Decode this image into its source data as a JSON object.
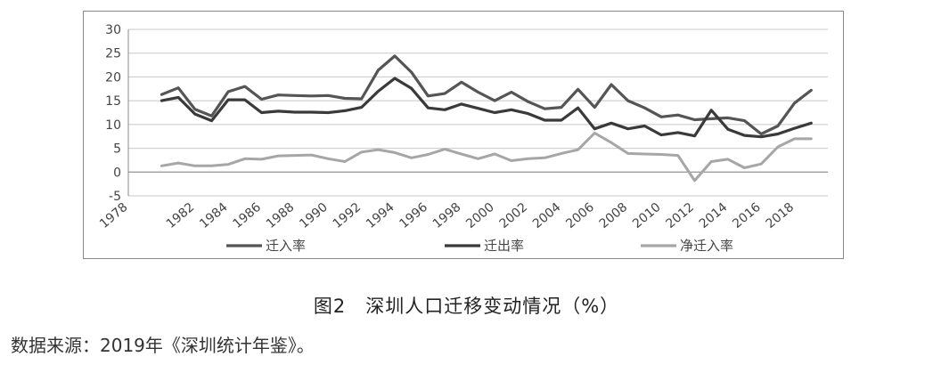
{
  "chart_data": {
    "type": "line",
    "title": "",
    "xlabel": "",
    "ylabel": "",
    "ylim": [
      -5,
      30
    ],
    "yticks": [
      -5,
      0,
      5,
      10,
      15,
      20,
      25,
      30
    ],
    "xtick_labels": [
      "1978",
      "1982",
      "1984",
      "1986",
      "1988",
      "1990",
      "1992",
      "1994",
      "1996",
      "1998",
      "2000",
      "2002",
      "2004",
      "2006",
      "2008",
      "2010",
      "2012",
      "2014",
      "2016",
      "2018"
    ],
    "x": [
      1980,
      1981,
      1982,
      1983,
      1984,
      1985,
      1986,
      1987,
      1988,
      1989,
      1990,
      1991,
      1992,
      1993,
      1994,
      1995,
      1996,
      1997,
      1998,
      1999,
      2000,
      2001,
      2002,
      2003,
      2004,
      2005,
      2006,
      2007,
      2008,
      2009,
      2010,
      2011,
      2012,
      2013,
      2014,
      2015,
      2016,
      2017,
      2018,
      2019
    ],
    "grid": true,
    "legend_position": "bottom",
    "series": [
      {
        "name": "迁入率",
        "color": "#555555",
        "values": [
          16.3,
          17.7,
          13.2,
          11.8,
          16.9,
          18.0,
          15.3,
          16.2,
          16.1,
          16.0,
          16.1,
          15.5,
          15.4,
          21.4,
          24.4,
          21.0,
          16.0,
          16.5,
          18.9,
          16.8,
          15.0,
          16.8,
          14.8,
          13.3,
          13.6,
          17.4,
          13.6,
          18.4,
          15.0,
          13.5,
          11.6,
          12.0,
          11.0,
          11.2,
          11.4,
          10.8,
          8.0,
          9.7,
          14.5,
          17.2
        ]
      },
      {
        "name": "迁出率",
        "color": "#3a3a3a",
        "values": [
          15.0,
          15.7,
          12.2,
          10.8,
          15.2,
          15.2,
          12.5,
          12.8,
          12.6,
          12.6,
          12.5,
          12.9,
          13.6,
          17.0,
          19.7,
          17.6,
          13.5,
          13.1,
          14.3,
          13.4,
          12.5,
          13.1,
          12.3,
          10.9,
          10.9,
          13.5,
          9.1,
          10.3,
          9.1,
          9.7,
          7.8,
          8.3,
          7.6,
          13.0,
          9.0,
          7.7,
          7.4,
          8.0,
          9.2,
          10.3
        ]
      },
      {
        "name": "净迁入率",
        "color": "#a6a6a6",
        "values": [
          1.3,
          1.9,
          1.3,
          1.3,
          1.6,
          2.8,
          2.7,
          3.4,
          3.5,
          3.6,
          2.8,
          2.2,
          4.2,
          4.7,
          4.1,
          3.0,
          3.7,
          4.8,
          3.8,
          2.8,
          3.8,
          2.4,
          2.8,
          3.0,
          3.9,
          4.7,
          8.2,
          6.2,
          3.9,
          3.8,
          3.7,
          3.5,
          -1.8,
          2.2,
          2.7,
          0.9,
          1.7,
          5.3,
          7.0,
          7.0
        ]
      }
    ]
  },
  "caption": {
    "label": "图2",
    "text": "深圳人口迁移变动情况（%）"
  },
  "source_note": "数据来源：2019年《深圳统计年鉴》。"
}
